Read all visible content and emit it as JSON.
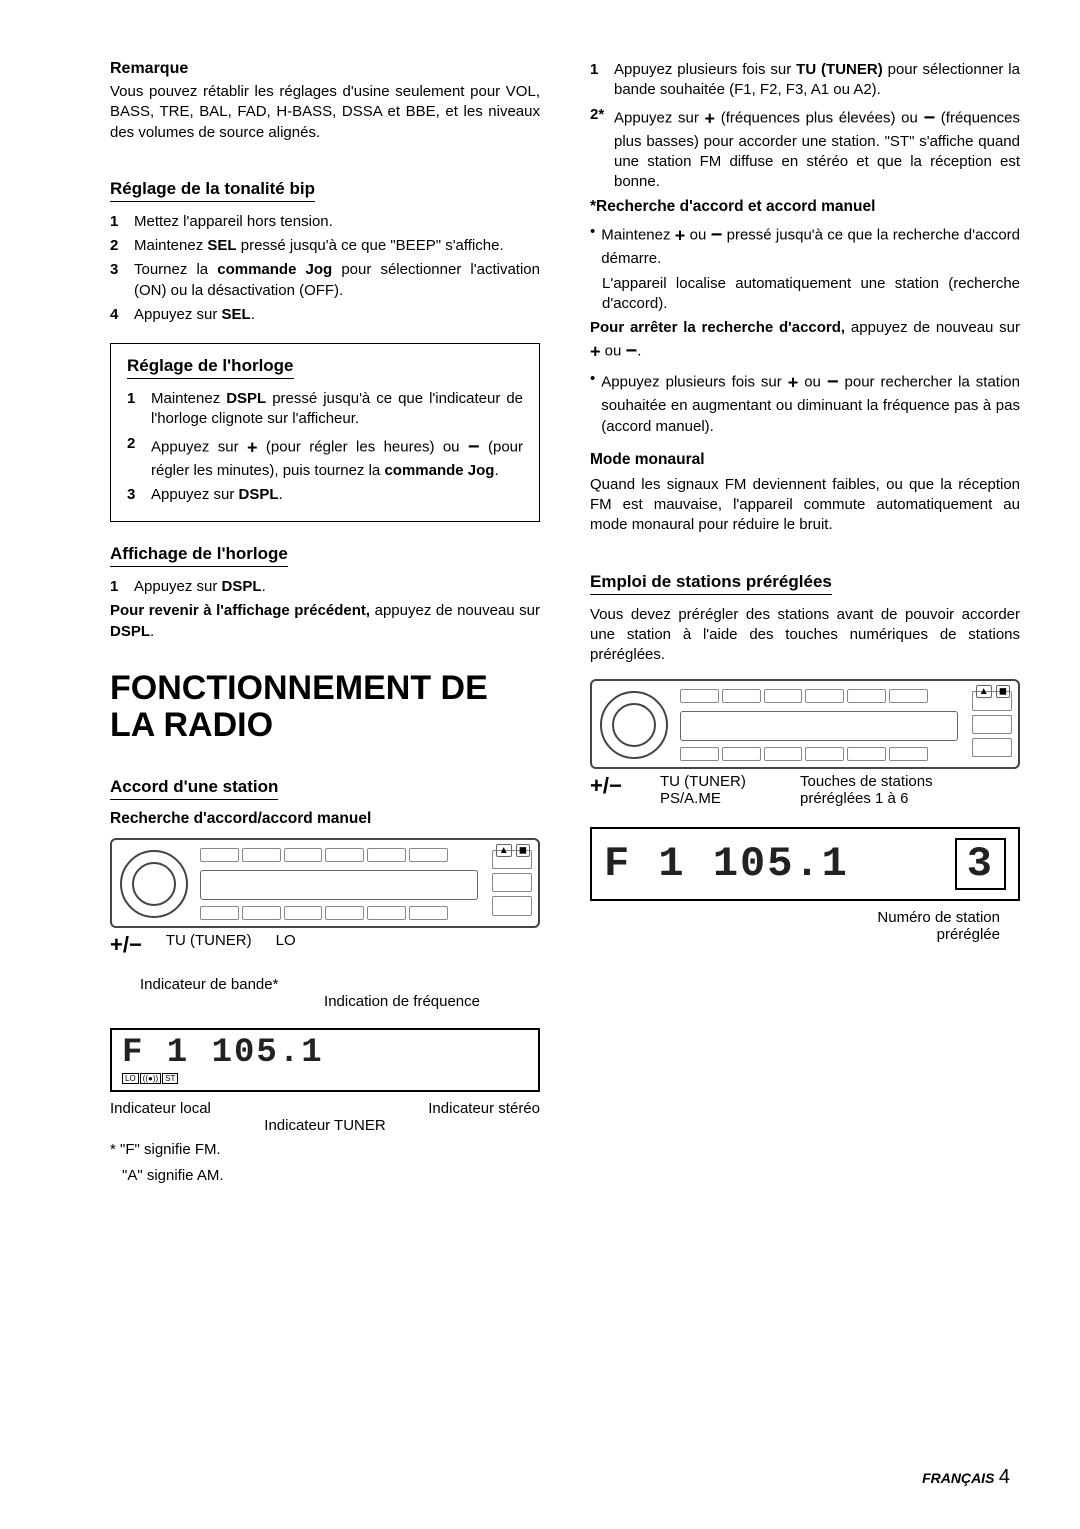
{
  "left": {
    "remarque_title": "Remarque",
    "remarque_text": "Vous pouvez rétablir les réglages d'usine seulement pour VOL, BASS, TRE, BAL, FAD, H-BASS, DSSA et BBE, et les niveaux des volumes de source alignés.",
    "tonalite_head": "Réglage de la tonalité bip",
    "tonalite_steps": [
      "Mettez l'appareil hors tension.",
      "Maintenez <b>SEL</b> pressé jusqu'à ce que \"BEEP\" s'affiche.",
      "Tournez la <b>commande Jog</b> pour sélectionner l'activation (ON) ou la désactivation (OFF).",
      "Appuyez sur <b>SEL</b>."
    ],
    "horloge_head": "Réglage de l'horloge",
    "horloge_steps": [
      "Maintenez <b>DSPL</b> pressé jusqu'à ce que l'indicateur de l'horloge clignote sur l'afficheur.",
      "Appuyez sur <span class='plus'>+</span> (pour régler les heures) ou <span class='minus'>−</span> (pour régler les minutes), puis tournez la <b>commande Jog</b>.",
      "Appuyez sur <b>DSPL</b>."
    ],
    "affichage_head": "Affichage de l'horloge",
    "affichage_step1": "Appuyez sur <b>DSPL</b>.",
    "affichage_return": "<b>Pour revenir à l'affichage précédent,</b> appuyez de nouveau sur <b>DSPL</b>.",
    "main_title": "FONCTIONNEMENT DE LA RADIO",
    "accord_head": "Accord d'une station",
    "accord_sub": "Recherche d'accord/accord manuel",
    "diag1_labels": {
      "pm": "+/−",
      "tu": "TU (TUNER)",
      "lo": "LO"
    },
    "diag2_top1": "Indicateur de bande*",
    "diag2_top2": "Indication de fréquence",
    "diag2_lcd": "F 1 105.1",
    "diag2_bottom_left": "Indicateur local",
    "diag2_bottom_right": "Indicateur stéréo",
    "diag2_bottom_mid": "Indicateur TUNER",
    "foot1": "* \"F\" signifie FM.",
    "foot2": "\"A\" signifie AM."
  },
  "right": {
    "step1": "Appuyez plusieurs fois sur <b>TU (TUNER)</b> pour sélectionner la bande souhaitée (F1, F2, F3, A1 ou A2).",
    "step2": "Appuyez sur <span class='plus'>+</span> (fréquences plus élevées) ou <span class='minus'>−</span> (fréquences plus basses) pour accorder une station. \"ST\" s'affiche quand une station FM diffuse en stéréo et que la réception est bonne.",
    "recherche_title": "*Recherche d'accord et accord manuel",
    "bullet1": "Maintenez <span class='plus'>+</span> ou <span class='minus'>−</span> pressé jusqu'à ce que la recherche d'accord démarre.",
    "bullet1b": "L'appareil localise automatiquement une station (recherche d'accord).",
    "stop_search": "<b>Pour arrêter la recherche d'accord,</b> appuyez de nouveau sur <span class='plus'>+</span> ou <span class='minus'>−</span>.",
    "bullet2": "Appuyez plusieurs fois sur <span class='plus'>+</span> ou <span class='minus'>−</span> pour rechercher la station souhaitée en augmentant ou diminuant la fréquence pas à pas (accord manuel).",
    "mono_title": "Mode monaural",
    "mono_text": "Quand les signaux FM deviennent faibles, ou que la réception FM est mauvaise, l'appareil commute automatiquement au mode monaural pour réduire le bruit.",
    "preset_head": "Emploi de stations préréglées",
    "preset_intro": "Vous devez prérégler des stations avant de pouvoir accorder une station à l'aide des touches numériques de stations préréglées.",
    "diag_labels": {
      "pm": "+/−",
      "tu": "TU (TUNER)",
      "ps": "PS/A.ME",
      "touches1": "Touches de stations",
      "touches2": "préréglées 1 à 6"
    },
    "lcd_text": "F 1 105.1",
    "lcd_preset": "3",
    "preset_label1": "Numéro de station",
    "preset_label2": "préréglée"
  },
  "footer": {
    "lang": "FRANÇAIS",
    "page": "4"
  }
}
